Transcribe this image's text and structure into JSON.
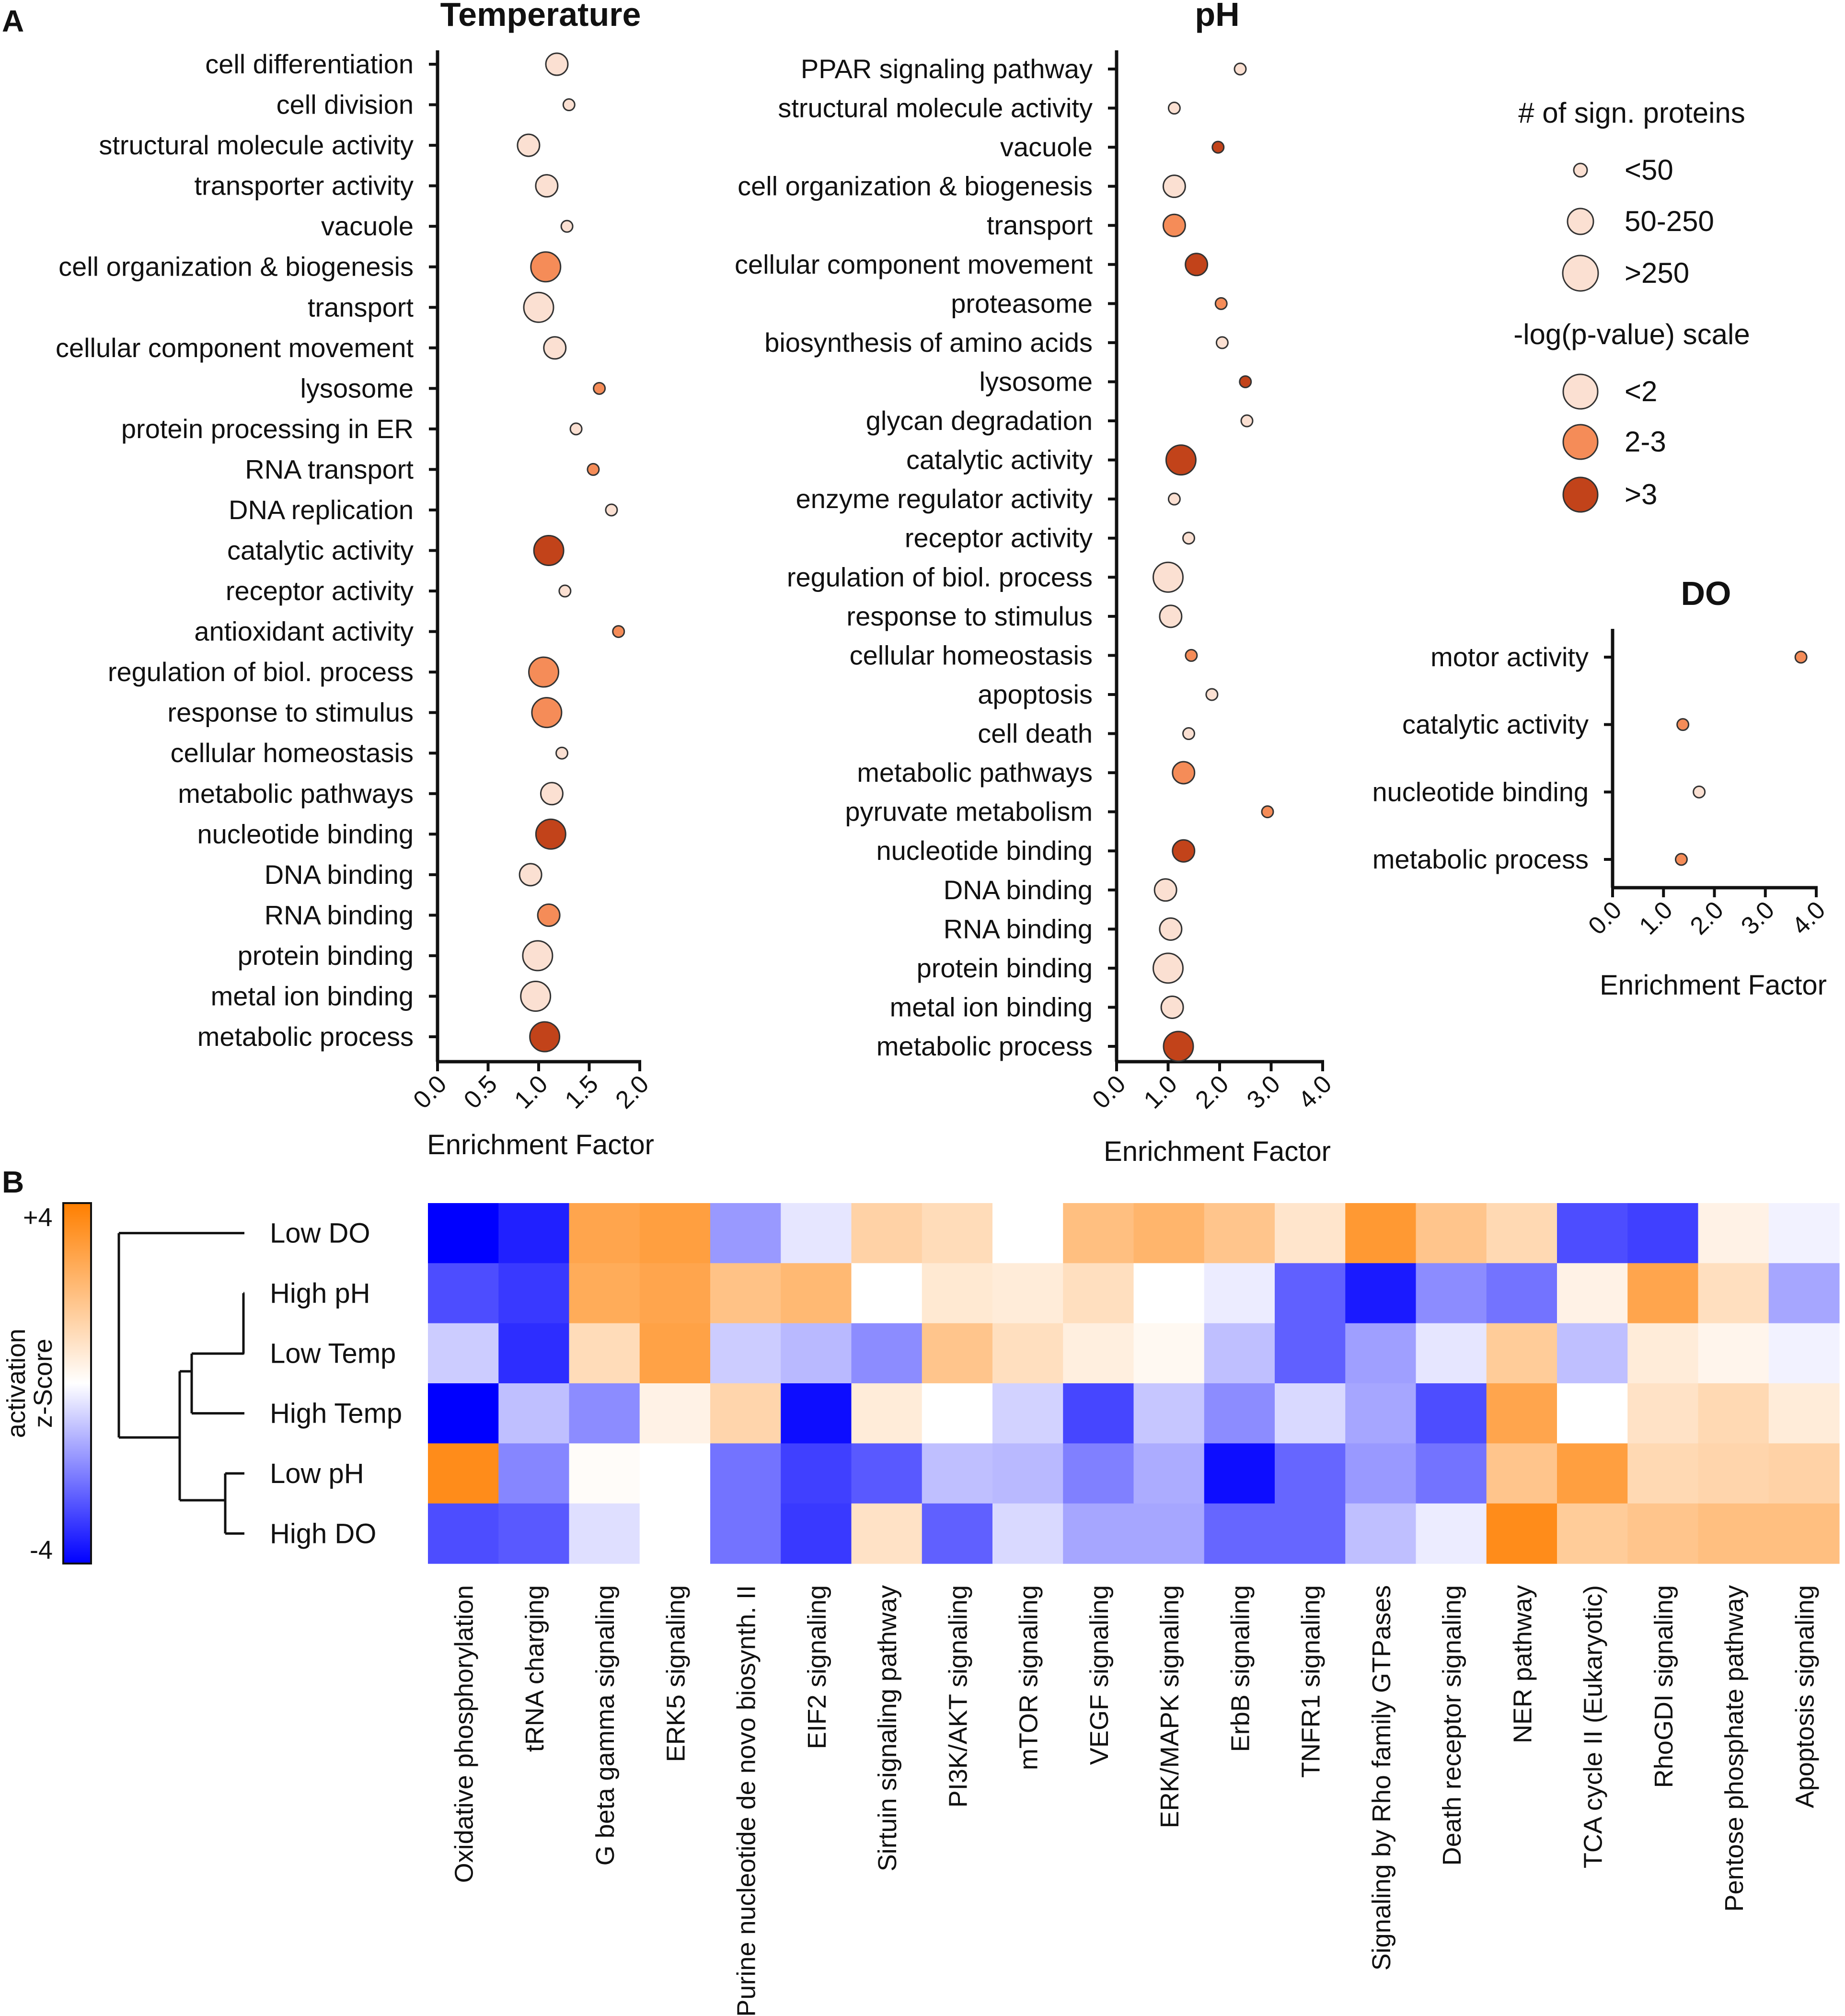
{
  "panel_labels": {
    "a": "A",
    "b": "B"
  },
  "colors": {
    "low": "#fbe0d2",
    "mid": "#f58c58",
    "high": "#c2431a",
    "neg": "#0000ff",
    "zero": "#ffffff",
    "pos": "#ff7f00"
  },
  "legend": {
    "size_title": "# of sign. proteins",
    "size_items": [
      "<50",
      "50-250",
      ">250"
    ],
    "color_title": "-log(p-value) scale",
    "color_items": [
      "<2",
      "2-3",
      ">3"
    ]
  },
  "chart_data": [
    {
      "type": "scatter",
      "id": "temp",
      "title": "Temperature",
      "xlabel": "Enrichment  Factor",
      "ylabel": "",
      "xlim": [
        0,
        2.0
      ],
      "xticks": [
        "0.0",
        "0.5",
        "1.0",
        "1.5",
        "2.0"
      ],
      "categories": [
        "cell differentiation",
        "cell division",
        "structural molecule activity",
        "transporter activity",
        "vacuole",
        "cell organization & biogenesis",
        "transport",
        "cellular component movement",
        "lysosome",
        "protein processing in ER",
        "RNA transport",
        "DNA replication",
        "catalytic activity",
        "receptor activity",
        "antioxidant activity",
        "regulation of biol. process",
        "response to stimulus",
        "cellular homeostasis",
        "metabolic pathways",
        "nucleotide binding",
        "DNA binding",
        "RNA binding",
        "protein binding",
        "metal ion binding",
        "metabolic process"
      ],
      "x": [
        1.18,
        1.3,
        0.9,
        1.08,
        1.28,
        1.07,
        1.0,
        1.16,
        1.6,
        1.37,
        1.54,
        1.72,
        1.1,
        1.26,
        1.79,
        1.05,
        1.08,
        1.23,
        1.13,
        1.12,
        0.92,
        1.1,
        0.99,
        0.97,
        1.06
      ],
      "size_class": [
        2,
        1,
        2,
        2,
        1,
        3,
        3,
        2,
        1,
        1,
        1,
        1,
        3,
        1,
        1,
        3,
        3,
        1,
        2,
        3,
        2,
        2,
        3,
        3,
        3
      ],
      "pvalue_class": [
        1,
        1,
        1,
        1,
        1,
        2,
        1,
        1,
        2,
        1,
        2,
        1,
        3,
        1,
        2,
        2,
        2,
        1,
        1,
        3,
        1,
        2,
        1,
        1,
        3
      ]
    },
    {
      "type": "scatter",
      "id": "ph",
      "title": "pH",
      "xlabel": "Enrichment  Factor",
      "ylabel": "",
      "xlim": [
        0,
        4.0
      ],
      "xticks": [
        "0.0",
        "1.0",
        "2.0",
        "3.0",
        "4.0"
      ],
      "categories": [
        "PPAR signaling pathway",
        "structural molecule activity",
        "vacuole",
        "cell organization & biogenesis",
        "transport",
        "cellular component movement",
        "proteasome",
        "biosynthesis of amino acids",
        "lysosome",
        "glycan degradation",
        "catalytic activity",
        "enzyme regulator activity",
        "receptor activity",
        "regulation of biol. process",
        "response to stimulus",
        "cellular homeostasis",
        "apoptosis",
        "cell death",
        "metabolic pathways",
        "pyruvate metabolism",
        "nucleotide binding",
        "DNA binding",
        "RNA binding",
        "protein binding",
        "metal ion binding",
        "metabolic process"
      ],
      "x": [
        2.4,
        1.12,
        1.97,
        1.12,
        1.12,
        1.55,
        2.03,
        2.05,
        2.5,
        2.53,
        1.25,
        1.12,
        1.4,
        1.0,
        1.05,
        1.45,
        1.85,
        1.4,
        1.3,
        2.93,
        1.3,
        0.95,
        1.05,
        1.0,
        1.08,
        1.2
      ],
      "size_class": [
        1,
        1,
        1,
        2,
        2,
        2,
        1,
        1,
        1,
        1,
        3,
        1,
        1,
        3,
        2,
        1,
        1,
        1,
        2,
        1,
        2,
        2,
        2,
        3,
        2,
        3
      ],
      "pvalue_class": [
        1,
        1,
        3,
        1,
        2,
        3,
        2,
        1,
        3,
        1,
        3,
        1,
        1,
        1,
        1,
        2,
        1,
        1,
        2,
        2,
        3,
        1,
        1,
        1,
        1,
        3
      ]
    },
    {
      "type": "scatter",
      "id": "do",
      "title": "DO",
      "xlabel": "Enrichment  Factor",
      "ylabel": "",
      "xlim": [
        0,
        4.0
      ],
      "xticks": [
        "0.0",
        "1.0",
        "2.0",
        "3.0",
        "4.0"
      ],
      "categories": [
        "motor activity",
        "catalytic activity",
        "nucleotide binding",
        "metabolic process"
      ],
      "x": [
        3.7,
        1.38,
        1.7,
        1.35
      ],
      "size_class": [
        1,
        1,
        1,
        1
      ],
      "pvalue_class": [
        2,
        2,
        1,
        2
      ]
    },
    {
      "type": "heatmap",
      "id": "heatmap",
      "title": "",
      "rows": [
        "Low DO",
        "High pH",
        "Low Temp",
        "High Temp",
        "Low pH",
        "High DO"
      ],
      "columns": [
        "Oxidative phosphorylation",
        "tRNA charging",
        "G beta gamma signaling",
        "ERK5 signaling",
        "Purine nucleotide de novo biosynth. II",
        "EIF2 signaling",
        "Sirtuin signaling pathway",
        "PI3K/AKT signaling",
        "mTOR signaling",
        "VEGF signaling",
        "ERK/MAPK signaling",
        "ErbB signaling",
        "TNFR1 signaling",
        "Signaling by Rho family GTPases",
        "Death receptor signaling",
        "NER pathway",
        "TCA cycle II (Eukaryotic)",
        "RhoGDI signaling",
        "Pentose phosphate pathway",
        "Apoptosis signaling"
      ],
      "values": [
        [
          -4.0,
          -3.5,
          2.8,
          3.0,
          -1.6,
          -0.4,
          1.4,
          1.1,
          0.0,
          2.0,
          2.3,
          1.8,
          0.8,
          3.2,
          1.8,
          1.2,
          -2.8,
          -3.0,
          0.4,
          -0.2
        ],
        [
          -2.8,
          -3.1,
          2.6,
          2.8,
          1.9,
          2.2,
          0.0,
          0.7,
          0.6,
          1.0,
          0.0,
          -0.3,
          -2.5,
          -3.6,
          -1.8,
          -2.2,
          0.4,
          2.8,
          1.0,
          -1.4
        ],
        [
          -0.8,
          -3.3,
          1.1,
          2.9,
          -0.8,
          -1.1,
          -1.8,
          1.8,
          1.0,
          0.5,
          0.2,
          -1.0,
          -2.5,
          -1.5,
          -0.4,
          1.6,
          -1.0,
          0.6,
          0.3,
          -0.2
        ],
        [
          -4.0,
          -1.0,
          -1.8,
          0.4,
          1.3,
          -3.8,
          0.6,
          0.0,
          -0.7,
          -2.9,
          -0.9,
          -1.8,
          -0.6,
          -1.4,
          -2.8,
          2.8,
          0.0,
          0.9,
          1.2,
          0.6
        ],
        [
          3.6,
          -1.9,
          0.1,
          0.0,
          -2.2,
          -3.0,
          -2.6,
          -1.0,
          -1.1,
          -2.0,
          -1.3,
          -3.8,
          -2.4,
          -1.6,
          -2.2,
          1.8,
          3.0,
          1.2,
          1.3,
          1.4
        ],
        [
          -2.8,
          -2.6,
          -0.5,
          0.0,
          -2.2,
          -3.1,
          0.9,
          -2.5,
          -0.6,
          -1.4,
          -1.4,
          -2.4,
          -2.4,
          -1.0,
          -0.3,
          3.6,
          1.6,
          1.8,
          2.0,
          2.0
        ]
      ],
      "dendrogram": "((Low DO),((High pH,Low Temp),High Temp),(Low pH,High DO))",
      "colorbar": {
        "title_line1": "activation",
        "title_line2": "z-Score",
        "max_label": "+4",
        "min_label": "-4",
        "range": [
          -4,
          4
        ]
      }
    }
  ]
}
